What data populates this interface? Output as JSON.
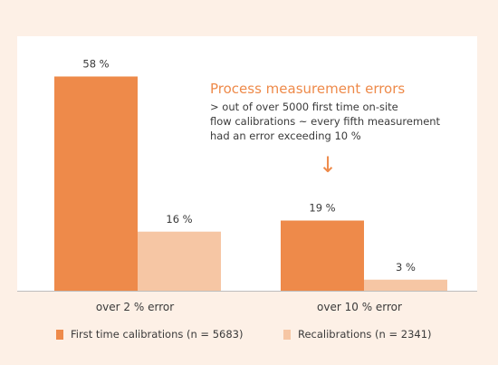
{
  "chart_data": {
    "type": "bar",
    "categories": [
      "over 2 % error",
      "over 10 % error"
    ],
    "series": [
      {
        "name": "First time calibrations (n = 5683)",
        "values": [
          58,
          19
        ],
        "labels": [
          "58 %",
          "19 %"
        ],
        "color": "#ee8a4a"
      },
      {
        "name": "Recalibrations (n = 2341)",
        "values": [
          16,
          3
        ],
        "labels": [
          "16 %",
          "3 %"
        ],
        "color": "#f6c6a4"
      }
    ],
    "title": "",
    "xlabel": "",
    "ylabel": "",
    "ylim": [
      0,
      64
    ],
    "grid": false,
    "legend_position": "bottom-left",
    "annotation": {
      "title": "Process measurement errors",
      "lines": [
        "> out of over 5000 first time on-site",
        "flow calibrations ~ every fifth measurement",
        "had an error exceeding 10 %"
      ],
      "arrow_icon": "down-arrow-icon"
    }
  }
}
